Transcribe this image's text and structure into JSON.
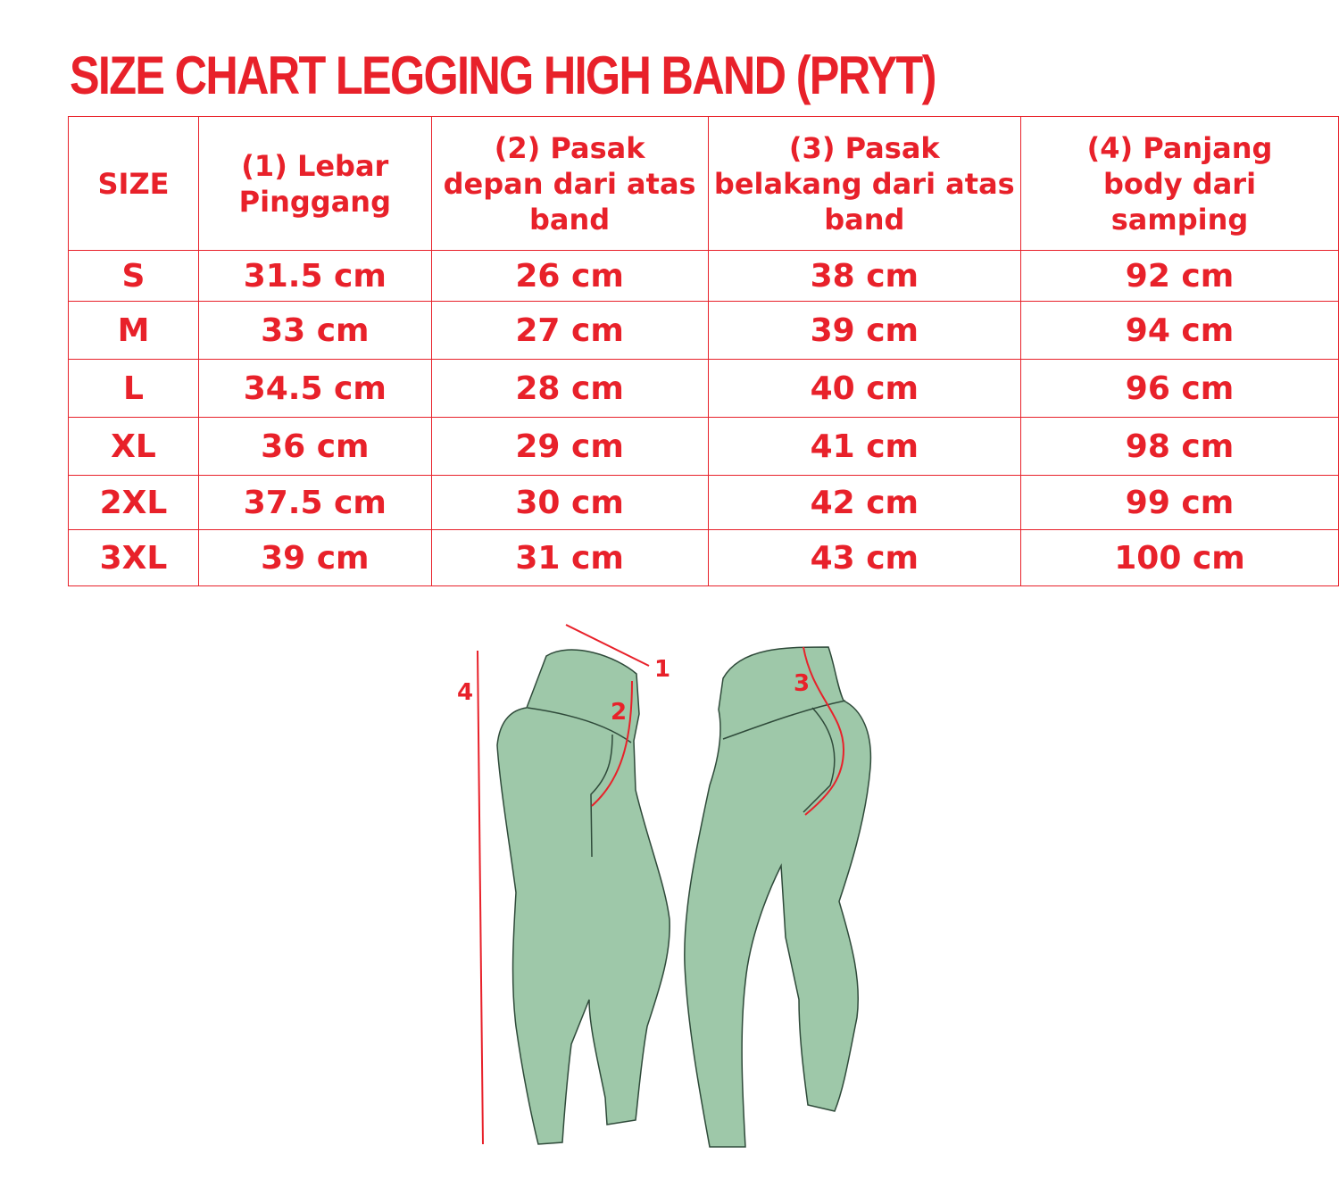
{
  "title": "SIZE CHART LEGGING HIGH BAND (PRYT)",
  "colors": {
    "accent": "#e8212a",
    "legging_fill": "#9ec8a9",
    "outline": "#2f4a3a"
  },
  "table": {
    "headers": [
      "SIZE",
      "(1) Lebar Pinggang",
      "(2) Pasak depan dari atas band",
      "(3) Pasak belakang dari atas band",
      "(4) Panjang body dari samping"
    ],
    "rows": [
      [
        "S",
        "31.5 cm",
        "26 cm",
        "38 cm",
        "92 cm"
      ],
      [
        "M",
        "33 cm",
        "27 cm",
        "39 cm",
        "94 cm"
      ],
      [
        "L",
        "34.5 cm",
        "28 cm",
        "40 cm",
        "96 cm"
      ],
      [
        "XL",
        "36 cm",
        "29 cm",
        "41 cm",
        "98 cm"
      ],
      [
        "2XL",
        "37.5 cm",
        "30 cm",
        "42 cm",
        "99 cm"
      ],
      [
        "3XL",
        "39 cm",
        "31 cm",
        "43 cm",
        "100 cm"
      ]
    ]
  },
  "diagram": {
    "labels": [
      "1",
      "2",
      "3",
      "4"
    ]
  }
}
